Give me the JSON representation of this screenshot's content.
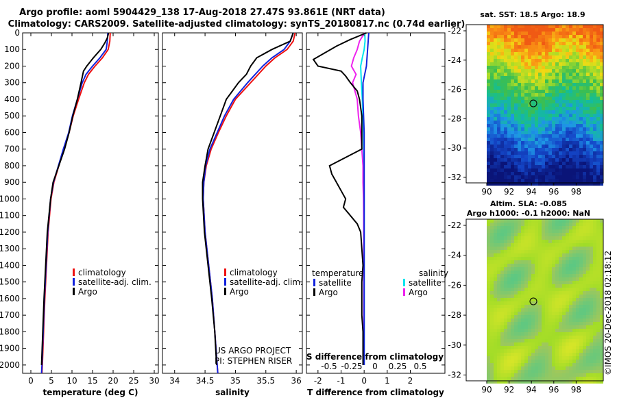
{
  "title_line1": "Argo profile: aoml 5904429_138 17-Aug-2018 27.47S 93.861E (NRT data)",
  "title_line2": "Climatology: CARS2009. Satellite-adjusted climatology: synTS_20180817.nc (0.74d earlier)",
  "colors": {
    "climatology": "#ee1111",
    "satellite_adj": "#1122dd",
    "argo": "#000000",
    "cyan": "#00e5ee",
    "magenta": "#ee22ee"
  },
  "depth_ticks": [
    "0",
    "100",
    "200",
    "300",
    "400",
    "500",
    "600",
    "700",
    "800",
    "900",
    "1000",
    "1100",
    "1200",
    "1300",
    "1400",
    "1500",
    "1600",
    "1700",
    "1800",
    "1900",
    "2000"
  ],
  "temp_ticks": [
    "0",
    "5",
    "10",
    "15",
    "20",
    "25",
    "30"
  ],
  "sal_ticks": [
    "34",
    "34.5",
    "35",
    "35.5",
    "36"
  ],
  "diff_t_ticks": [
    "-2",
    "-1",
    "0",
    "1",
    "2"
  ],
  "diff_s_ticks": [
    "-0.5",
    "-0.25",
    "0",
    "0.25",
    "0.5"
  ],
  "lat_ticks": [
    "-22",
    "-24",
    "-26",
    "-28",
    "-30",
    "-32"
  ],
  "lon_ticks": [
    "90",
    "92",
    "94",
    "96",
    "98"
  ],
  "temp_xlabel": "temperature (deg C)",
  "sal_xlabel": "salinity",
  "diff_xlabel": "T difference from climatology",
  "diff_s_label": "S difference from climatology",
  "legend": {
    "climatology": "climatology",
    "satellite": "satellite-adj. clim.",
    "argo": "Argo"
  },
  "diff_legend": {
    "temperature": "temperature",
    "salinity": "salinity",
    "satellite": "satellite",
    "argo": "Argo"
  },
  "pi_text": [
    "US ARGO PROJECT",
    "PI: STEPHEN RISER"
  ],
  "sst_title": "sat. SST: 18.5 Argo: 18.9",
  "sla_title1": "Altim. SLA: -0.085",
  "sla_title2": "Argo h1000: -0.1 h2000: NaN",
  "imos_stamp": "©IMOS 20-Dec-2018 02:18:12",
  "chart_data": [
    {
      "type": "line",
      "name": "temperature",
      "x_unit": "deg C",
      "xlim": [
        -2,
        31
      ],
      "ylim": [
        2050,
        0
      ],
      "series": [
        {
          "name": "climatology",
          "depth": [
            0,
            50,
            100,
            150,
            200,
            250,
            300,
            400,
            500,
            600,
            700,
            800,
            900,
            1000,
            1200,
            1400,
            1600,
            1800,
            2000,
            2050
          ],
          "x": [
            19.3,
            19.2,
            18.8,
            17.4,
            15.6,
            14.0,
            13.0,
            11.6,
            10.3,
            9.3,
            8.0,
            6.8,
            5.6,
            4.9,
            4.2,
            3.8,
            3.4,
            3.1,
            2.8,
            2.7
          ]
        },
        {
          "name": "satellite-adj. clim.",
          "depth": [
            0,
            50,
            100,
            150,
            200,
            250,
            300,
            400,
            500,
            600,
            700,
            800,
            900,
            1000,
            1200,
            1400,
            1600,
            1800,
            2000,
            2050
          ],
          "x": [
            18.7,
            18.6,
            18.3,
            16.8,
            15.0,
            13.4,
            12.5,
            11.3,
            10.1,
            9.2,
            7.9,
            6.7,
            5.5,
            4.8,
            4.1,
            3.7,
            3.3,
            3.0,
            2.7,
            2.6
          ]
        },
        {
          "name": "Argo",
          "depth": [
            0,
            30,
            60,
            100,
            150,
            200,
            230,
            300,
            400,
            500,
            600,
            700,
            800,
            900,
            1000,
            1200,
            1400,
            1600,
            1800,
            2000
          ],
          "x": [
            18.9,
            18.6,
            18.0,
            17.0,
            15.2,
            13.6,
            12.8,
            12.2,
            11.3,
            10.2,
            9.3,
            8.2,
            6.8,
            5.4,
            4.8,
            4.0,
            3.6,
            3.2,
            2.9,
            2.6
          ]
        }
      ]
    },
    {
      "type": "line",
      "name": "salinity",
      "xlim": [
        33.8,
        36.1
      ],
      "ylim": [
        2050,
        0
      ],
      "series": [
        {
          "name": "climatology",
          "depth": [
            0,
            50,
            100,
            150,
            200,
            300,
            400,
            500,
            600,
            700,
            800,
            900,
            1000,
            1200,
            1400,
            1600,
            1800,
            2000,
            2050
          ],
          "x": [
            35.98,
            35.95,
            35.85,
            35.65,
            35.5,
            35.25,
            35.0,
            34.85,
            34.72,
            34.6,
            34.52,
            34.48,
            34.47,
            34.5,
            34.56,
            34.62,
            34.66,
            34.7,
            34.71
          ]
        },
        {
          "name": "satellite-adj. clim.",
          "depth": [
            0,
            50,
            100,
            150,
            200,
            300,
            400,
            500,
            600,
            700,
            800,
            900,
            1000,
            1200,
            1400,
            1600,
            1800,
            2000,
            2050
          ],
          "x": [
            35.95,
            35.9,
            35.8,
            35.6,
            35.45,
            35.2,
            34.97,
            34.82,
            34.7,
            34.58,
            34.51,
            34.48,
            34.47,
            34.5,
            34.56,
            34.62,
            34.66,
            34.7,
            34.71
          ]
        },
        {
          "name": "Argo",
          "depth": [
            0,
            50,
            100,
            150,
            200,
            250,
            300,
            400,
            500,
            600,
            700,
            800,
            900,
            1000,
            1200,
            1400,
            1600,
            1800,
            2000
          ],
          "x": [
            35.95,
            35.9,
            35.6,
            35.35,
            35.25,
            35.18,
            35.05,
            34.85,
            34.75,
            34.65,
            34.55,
            34.5,
            34.46,
            34.46,
            34.49,
            34.55,
            34.61,
            34.66,
            34.69
          ]
        }
      ]
    },
    {
      "type": "line",
      "name": "difference from climatology",
      "xlim": [
        -2.5,
        3.5
      ],
      "ylim": [
        2050,
        0
      ],
      "series": [
        {
          "name": "temperature satellite",
          "depth": [
            0,
            100,
            200,
            300,
            400,
            600,
            800,
            1000,
            1200,
            1500,
            1800,
            2000
          ],
          "x": [
            0.2,
            0.15,
            0.1,
            -0.05,
            -0.05,
            0.0,
            0.0,
            0.0,
            0.0,
            0.0,
            0.0,
            0.0
          ]
        },
        {
          "name": "temperature Argo",
          "depth": [
            0,
            40,
            80,
            120,
            160,
            200,
            230,
            260,
            300,
            350,
            400,
            500,
            600,
            700,
            800,
            850,
            900,
            950,
            1000,
            1050,
            1100,
            1150,
            1200,
            1300,
            1400,
            1500,
            1600,
            1700,
            1800,
            2000
          ],
          "x": [
            0.1,
            -0.6,
            -1.2,
            -1.7,
            -2.2,
            -2.0,
            -1.0,
            -0.8,
            -0.6,
            -0.3,
            -0.2,
            -0.1,
            -0.1,
            -0.1,
            -1.5,
            -1.4,
            -1.2,
            -1.0,
            -0.8,
            -0.9,
            -0.6,
            -0.3,
            -0.15,
            -0.1,
            -0.05,
            -0.1,
            -0.1,
            -0.1,
            -0.05,
            -0.05
          ]
        },
        {
          "name": "salinity satellite",
          "depth": [
            0,
            50,
            100,
            150,
            200,
            300,
            400,
            600,
            800,
            1000,
            1200,
            1500,
            1800,
            2000
          ],
          "x": [
            0.03,
            0.04,
            0.0,
            -0.08,
            -0.15,
            -0.12,
            -0.08,
            -0.03,
            -0.01,
            0.0,
            0.0,
            0.0,
            0.0,
            0.0
          ]
        },
        {
          "name": "salinity Argo",
          "depth": [
            0,
            50,
            100,
            150,
            200,
            250,
            300,
            400,
            500,
            600,
            700,
            800,
            900,
            1000,
            1100,
            1200,
            1400,
            1600,
            1800,
            2000
          ],
          "x": [
            0.02,
            -0.2,
            -0.3,
            -0.45,
            -0.55,
            -0.35,
            -0.5,
            -0.3,
            -0.25,
            -0.15,
            -0.1,
            -0.05,
            -0.05,
            -0.03,
            -0.02,
            -0.02,
            -0.01,
            -0.01,
            -0.01,
            -0.01
          ]
        }
      ]
    }
  ]
}
